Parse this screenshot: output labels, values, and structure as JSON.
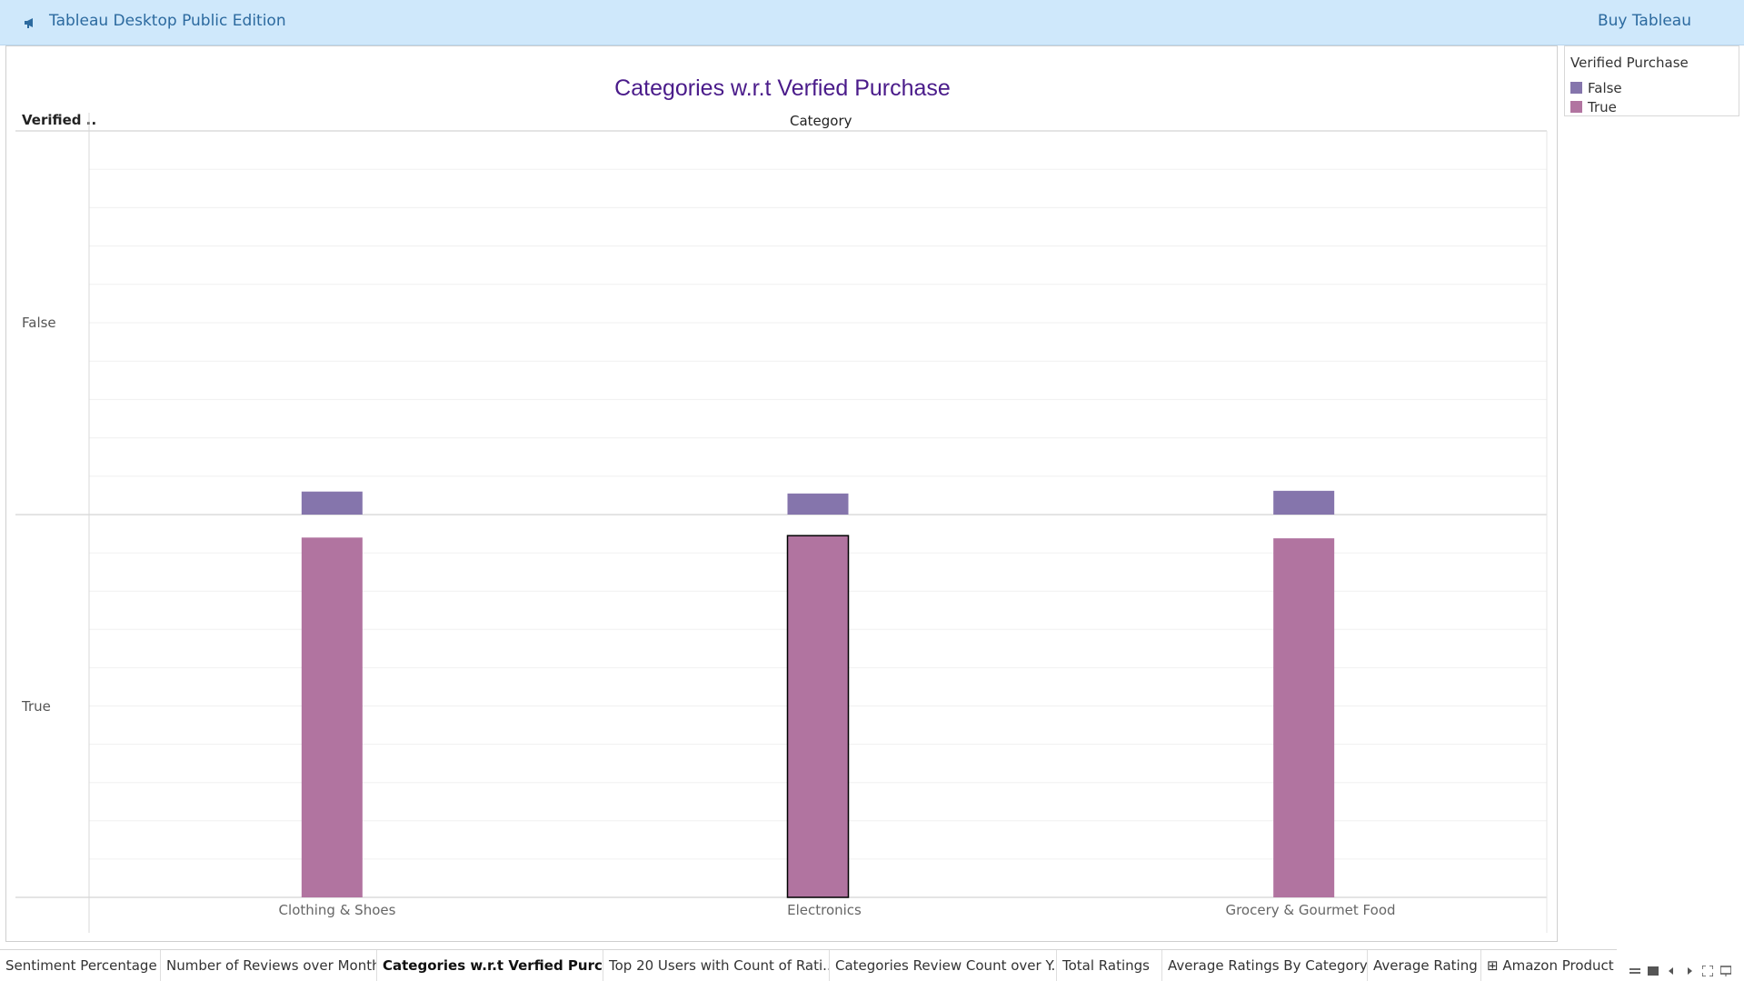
{
  "topbar": {
    "edition": "Tableau Desktop Public Edition",
    "buy": "Buy Tableau"
  },
  "chart_data": {
    "type": "bar",
    "title": "Categories w.r.t Verfied Purchase",
    "row_header": "Verified ..",
    "column_header": "Category",
    "rows": [
      "False",
      "True"
    ],
    "categories": [
      "Clothing & Shoes",
      "Electronics",
      "Grocery & Gourmet Food"
    ],
    "series": [
      {
        "name": "False",
        "values": [
          6,
          5.5,
          6.2
        ]
      },
      {
        "name": "True",
        "values": [
          94,
          94.5,
          93.8
        ]
      }
    ],
    "ylim": [
      0,
      100
    ],
    "grid": true,
    "legend_placement": "right",
    "colors": {
      "False": "#8575ac",
      "True": "#b174a0"
    },
    "selected_mark": "Electronics / True"
  },
  "legend": {
    "title": "Verified Purchase",
    "items": [
      {
        "label": "False",
        "color": "#8575ac"
      },
      {
        "label": "True",
        "color": "#b174a0"
      }
    ]
  },
  "tabs": [
    {
      "label": "Sentiment Percentage"
    },
    {
      "label": "Number of Reviews over Month"
    },
    {
      "label": "Categories w.r.t Verfied Purch..."
    },
    {
      "label": "Top 20 Users with Count of Rati..."
    },
    {
      "label": "Categories Review Count over Y..."
    },
    {
      "label": "Total Ratings"
    },
    {
      "label": "Average Ratings By Category"
    },
    {
      "label": "Average Rating"
    },
    {
      "label": "Amazon Product R"
    }
  ],
  "active_tab": 2
}
